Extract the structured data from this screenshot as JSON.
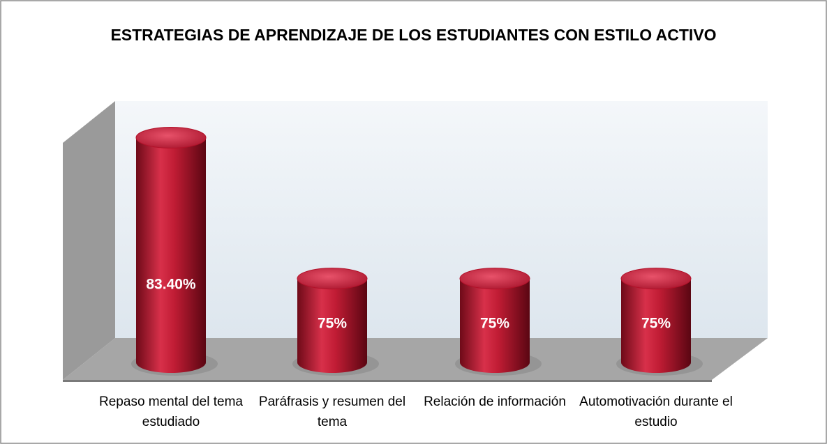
{
  "chart_data": {
    "type": "bar3d-cylinder",
    "title": "ESTRATEGIAS DE APRENDIZAJE DE LOS ESTUDIANTES CON ESTILO ACTIVO",
    "categories": [
      "Repaso mental del tema estudiado",
      "Paráfrasis y resumen del tema",
      "Relación de información",
      "Automotivación durante el estudio"
    ],
    "values": [
      83.4,
      75,
      75,
      75
    ],
    "value_labels": [
      "83.40%",
      "75%",
      "75%",
      "75%"
    ],
    "color": "#b3122a",
    "ylim": [
      70,
      85
    ]
  }
}
